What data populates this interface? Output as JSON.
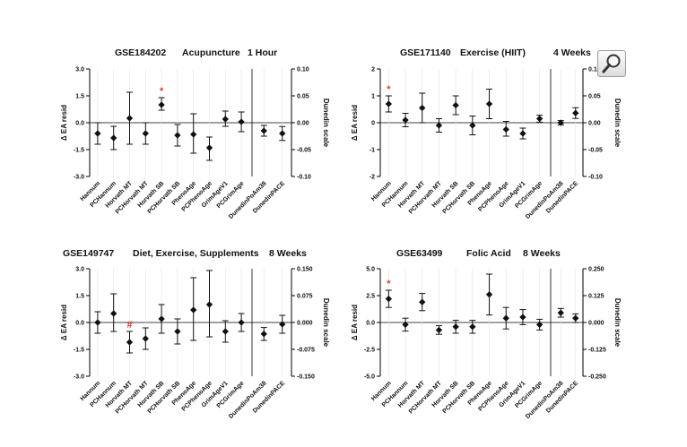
{
  "toolbar": {
    "zoom_icon": "magnifier-icon"
  },
  "chart_data": [
    {
      "type": "scatter",
      "id": "p1",
      "title_parts": [
        "GSE184202",
        "Acupuncture",
        "1 Hour"
      ],
      "ylabel": "Δ EA resid",
      "y2label": "Dunedin scale",
      "yticks": [
        "3.0",
        "1.5",
        "0.0",
        "-1.5",
        "-3.0"
      ],
      "y2ticks": [
        "0.10",
        "0.05",
        "0.00",
        "-0.05",
        "-0.10"
      ],
      "ylim": [
        -3,
        3
      ],
      "categories": [
        "Hannum",
        "PCHannum",
        "Horvath MT",
        "PCHorvath MT",
        "Horvath SB",
        "PCHorvath SB",
        "PhenoAge",
        "PCPhenoAge",
        "GrimAgeV1",
        "PCGrimAge"
      ],
      "points": [
        {
          "y": -0.6,
          "lo": -1.2,
          "hi": 0.0
        },
        {
          "y": -0.85,
          "lo": -1.5,
          "hi": -0.2
        },
        {
          "y": 0.25,
          "lo": -1.2,
          "hi": 1.7
        },
        {
          "y": -0.6,
          "lo": -1.2,
          "hi": 0.0
        },
        {
          "y": 1.0,
          "lo": 0.7,
          "hi": 1.4,
          "sig": "*"
        },
        {
          "y": -0.7,
          "lo": -1.3,
          "hi": -0.1
        },
        {
          "y": -0.65,
          "lo": -1.7,
          "hi": 0.5
        },
        {
          "y": -1.4,
          "lo": -2.1,
          "hi": -0.8
        },
        {
          "y": 0.2,
          "lo": -0.2,
          "hi": 0.65
        },
        {
          "y": 0.05,
          "lo": -0.5,
          "hi": 0.6
        }
      ],
      "dunedin_categories": [
        "DunedinPoAm38",
        "DunedinPACE"
      ],
      "dunedin_points": [
        {
          "y": -0.015,
          "lo": -0.025,
          "hi": -0.005
        },
        {
          "y": -0.02,
          "lo": -0.033,
          "hi": -0.007
        }
      ],
      "y2lim": [
        -0.1,
        0.1
      ]
    },
    {
      "type": "scatter",
      "id": "p2",
      "title_parts": [
        "GSE171140",
        "Exercise (HIIT)",
        "4 Weeks"
      ],
      "ylabel": "Δ EA resid",
      "y2label": "Dunedin scale",
      "yticks": [
        "2",
        "1",
        "0",
        "-1",
        "-2"
      ],
      "y2ticks": [
        "0.10",
        "0.05",
        "0.00",
        "-0.05",
        "-0.10"
      ],
      "ylim": [
        -2,
        2
      ],
      "categories": [
        "Hannum",
        "PCHannum",
        "Horvath MT",
        "PCHorvath MT",
        "Horvath SB",
        "PCHorvath SB",
        "PhenoAge",
        "PCPhenoAge",
        "GrimAgeV1",
        "PCGrimAge"
      ],
      "points": [
        {
          "y": 0.7,
          "lo": 0.4,
          "hi": 1.0,
          "sig": "*"
        },
        {
          "y": 0.1,
          "lo": -0.15,
          "hi": 0.35
        },
        {
          "y": 0.55,
          "lo": 0.0,
          "hi": 1.1
        },
        {
          "y": -0.1,
          "lo": -0.35,
          "hi": 0.15
        },
        {
          "y": 0.65,
          "lo": 0.3,
          "hi": 1.0
        },
        {
          "y": -0.1,
          "lo": -0.45,
          "hi": 0.25
        },
        {
          "y": 0.7,
          "lo": 0.15,
          "hi": 1.25
        },
        {
          "y": -0.25,
          "lo": -0.5,
          "hi": 0.05
        },
        {
          "y": -0.4,
          "lo": -0.6,
          "hi": -0.2
        },
        {
          "y": 0.15,
          "lo": 0.02,
          "hi": 0.28
        }
      ],
      "dunedin_categories": [
        "DunedinPoAm38",
        "DunedinPACE"
      ],
      "dunedin_points": [
        {
          "y": 0.0,
          "lo": -0.004,
          "hi": 0.004
        },
        {
          "y": 0.018,
          "lo": 0.008,
          "hi": 0.028
        }
      ],
      "y2lim": [
        -0.1,
        0.1
      ]
    },
    {
      "type": "scatter",
      "id": "p3",
      "title_parts": [
        "GSE149747",
        "Diet, Exercise, Supplements",
        "8 Weeks"
      ],
      "ylabel": "Δ EA resid",
      "y2label": "Dunedin scale",
      "yticks": [
        "3.0",
        "1.5",
        "0.0",
        "-1.5",
        "-3.0"
      ],
      "y2ticks": [
        "0.150",
        "0.075",
        "0.000",
        "-0.075",
        "-0.150"
      ],
      "ylim": [
        -3,
        3
      ],
      "categories": [
        "Hannum",
        "PCHannum",
        "Horvath MT",
        "PCHorvath MT",
        "Horvath SB",
        "PCHorvath SB",
        "PhenoAge",
        "PCPhenoAge",
        "GrimAgeV1",
        "PCGrimAge"
      ],
      "points": [
        {
          "y": 0.0,
          "lo": -0.6,
          "hi": 0.6
        },
        {
          "y": 0.5,
          "lo": -0.5,
          "hi": 1.6
        },
        {
          "y": -1.1,
          "lo": -1.7,
          "hi": -0.5,
          "sig": "#"
        },
        {
          "y": -0.9,
          "lo": -1.5,
          "hi": -0.3
        },
        {
          "y": 0.2,
          "lo": -0.6,
          "hi": 1.0
        },
        {
          "y": -0.5,
          "lo": -1.2,
          "hi": 0.2
        },
        {
          "y": 0.7,
          "lo": -1.0,
          "hi": 2.5
        },
        {
          "y": 1.0,
          "lo": -0.8,
          "hi": 2.9
        },
        {
          "y": -0.5,
          "lo": -1.1,
          "hi": 0.1
        },
        {
          "y": 0.0,
          "lo": -0.5,
          "hi": 0.5
        }
      ],
      "dunedin_categories": [
        "DunedinPoAm38",
        "DunedinPACE"
      ],
      "dunedin_points": [
        {
          "y": -0.032,
          "lo": -0.05,
          "hi": -0.014
        },
        {
          "y": -0.005,
          "lo": -0.03,
          "hi": 0.02
        }
      ],
      "y2lim": [
        -0.15,
        0.15
      ]
    },
    {
      "type": "scatter",
      "id": "p4",
      "title_parts": [
        "GSE63499",
        "Folic Acid",
        "8 Weeks"
      ],
      "ylabel": "Δ EA resid",
      "y2label": "Dunedin scale",
      "yticks": [
        "5.0",
        "2.5",
        "0.0",
        "-2.5",
        "-5.0"
      ],
      "y2ticks": [
        "0.250",
        "0.125",
        "0.000",
        "-0.125",
        "-0.250"
      ],
      "ylim": [
        -5,
        5
      ],
      "categories": [
        "Hannum",
        "PCHannum",
        "Horvath MT",
        "PCHorvath MT",
        "Horvath SB",
        "PCHorvath SB",
        "PhenoAge",
        "PCPhenoAge",
        "GrimAgeV1",
        "PCGrimAge"
      ],
      "points": [
        {
          "y": 2.2,
          "lo": 1.4,
          "hi": 3.0,
          "sig": "*"
        },
        {
          "y": -0.2,
          "lo": -0.8,
          "hi": 0.4
        },
        {
          "y": 1.9,
          "lo": 1.1,
          "hi": 2.7
        },
        {
          "y": -0.7,
          "lo": -1.1,
          "hi": -0.3
        },
        {
          "y": -0.4,
          "lo": -1.0,
          "hi": 0.2
        },
        {
          "y": -0.4,
          "lo": -1.0,
          "hi": 0.2
        },
        {
          "y": 2.6,
          "lo": 0.7,
          "hi": 4.5
        },
        {
          "y": 0.4,
          "lo": -0.6,
          "hi": 1.4
        },
        {
          "y": 0.5,
          "lo": -0.2,
          "hi": 1.2
        },
        {
          "y": -0.2,
          "lo": -0.7,
          "hi": 0.3
        }
      ],
      "dunedin_categories": [
        "DunedinPoAm38",
        "DunedinPACE"
      ],
      "dunedin_points": [
        {
          "y": 0.045,
          "lo": 0.025,
          "hi": 0.065
        },
        {
          "y": 0.02,
          "lo": 0.0,
          "hi": 0.04
        }
      ],
      "y2lim": [
        -0.25,
        0.25
      ]
    }
  ]
}
